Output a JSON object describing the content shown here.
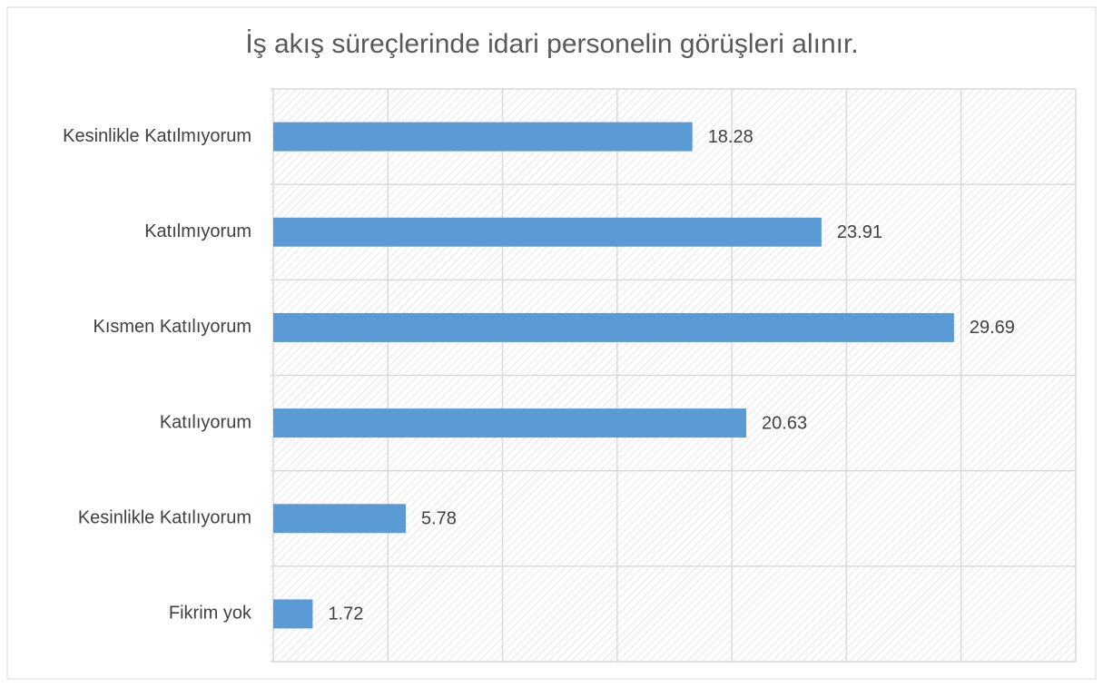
{
  "chart_data": {
    "type": "bar",
    "orientation": "horizontal",
    "title": "İş akış süreçlerinde idari personelin görüşleri alınır.",
    "categories": [
      "Kesinlikle Katılmıyorum",
      "Katılmıyorum",
      "Kısmen Katılıyorum",
      "Katılıyorum",
      "Kesinlikle Katılıyorum",
      "Fikrim yok"
    ],
    "values": [
      18.28,
      23.91,
      29.69,
      20.63,
      5.78,
      1.72
    ],
    "color": "#5b9bd5",
    "xlim": [
      0,
      35
    ],
    "xticks": [
      0,
      5,
      10,
      15,
      20,
      25,
      30,
      35
    ],
    "grid": true
  }
}
